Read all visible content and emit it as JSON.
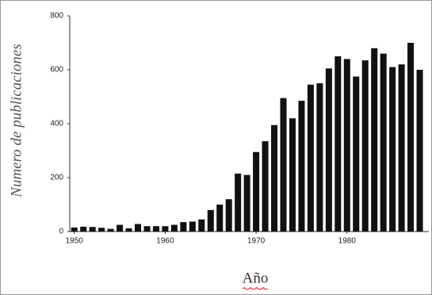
{
  "chart_data": {
    "type": "bar",
    "x_label": "Año",
    "y_label": "Numero de publicaciones",
    "x": [
      1950,
      1951,
      1952,
      1953,
      1954,
      1955,
      1956,
      1957,
      1958,
      1959,
      1960,
      1961,
      1962,
      1963,
      1964,
      1965,
      1966,
      1967,
      1968,
      1969,
      1970,
      1971,
      1972,
      1973,
      1974,
      1975,
      1976,
      1977,
      1978,
      1979,
      1980,
      1981,
      1982,
      1983,
      1984,
      1985,
      1986,
      1987,
      1988
    ],
    "values": [
      15,
      18,
      17,
      14,
      10,
      25,
      12,
      28,
      20,
      20,
      20,
      25,
      35,
      37,
      45,
      80,
      100,
      120,
      215,
      210,
      295,
      335,
      395,
      495,
      420,
      485,
      545,
      550,
      605,
      650,
      640,
      575,
      635,
      680,
      660,
      610,
      620,
      700,
      600
    ],
    "color": "#111111",
    "xlim": [
      1949.5,
      1989
    ],
    "xticks": [
      1950,
      1960,
      1970,
      1980
    ],
    "ylim": [
      0,
      800
    ],
    "yticks": [
      0,
      200,
      400,
      600,
      800
    ],
    "grid": false
  }
}
